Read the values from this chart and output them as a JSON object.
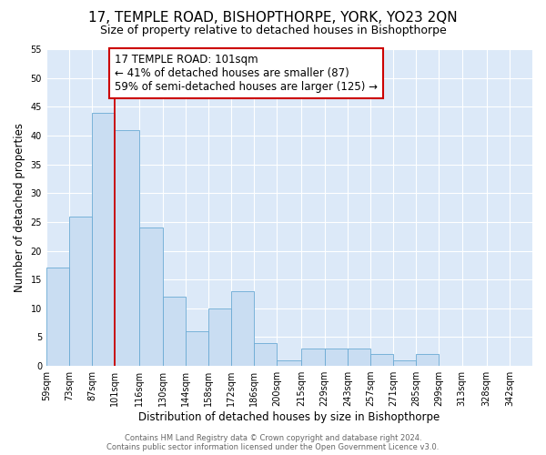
{
  "title": "17, TEMPLE ROAD, BISHOPTHORPE, YORK, YO23 2QN",
  "subtitle": "Size of property relative to detached houses in Bishopthorpe",
  "xlabel": "Distribution of detached houses by size in Bishopthorpe",
  "ylabel": "Number of detached properties",
  "bin_labels": [
    "59sqm",
    "73sqm",
    "87sqm",
    "101sqm",
    "116sqm",
    "130sqm",
    "144sqm",
    "158sqm",
    "172sqm",
    "186sqm",
    "200sqm",
    "215sqm",
    "229sqm",
    "243sqm",
    "257sqm",
    "271sqm",
    "285sqm",
    "299sqm",
    "313sqm",
    "328sqm",
    "342sqm"
  ],
  "bar_heights": [
    17,
    26,
    44,
    41,
    24,
    12,
    6,
    10,
    13,
    4,
    1,
    3,
    3,
    3,
    2,
    1,
    2,
    0,
    0,
    0,
    0
  ],
  "bin_left_edges": [
    59,
    73,
    87,
    101,
    116,
    130,
    144,
    158,
    172,
    186,
    200,
    215,
    229,
    243,
    257,
    271,
    285,
    299,
    313,
    328,
    342
  ],
  "bar_color": "#c9ddf2",
  "bar_edge_color": "#6aaad4",
  "redline_x": 101,
  "annotation_text": "17 TEMPLE ROAD: 101sqm\n← 41% of detached houses are smaller (87)\n59% of semi-detached houses are larger (125) →",
  "annotation_box_color": "#ffffff",
  "annotation_box_edge_color": "#cc0000",
  "ylim": [
    0,
    55
  ],
  "yticks": [
    0,
    5,
    10,
    15,
    20,
    25,
    30,
    35,
    40,
    45,
    50,
    55
  ],
  "footer_text": "Contains HM Land Registry data © Crown copyright and database right 2024.\nContains public sector information licensed under the Open Government Licence v3.0.",
  "fig_bg_color": "#ffffff",
  "plot_bg_color": "#dce9f8",
  "grid_color": "#ffffff",
  "title_fontsize": 11,
  "subtitle_fontsize": 9,
  "axis_label_fontsize": 8.5,
  "tick_fontsize": 7,
  "annotation_fontsize": 8.5,
  "footer_fontsize": 6,
  "footer_color": "#666666"
}
